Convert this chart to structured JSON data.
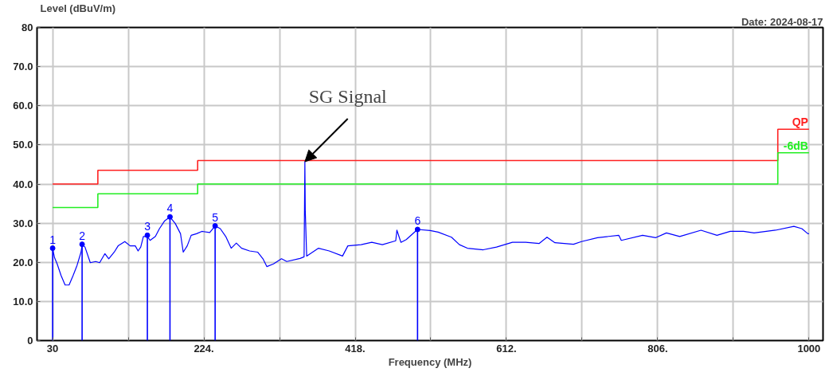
{
  "chart_data": {
    "type": "line",
    "xlabel": "Frequency (MHz)",
    "ylabel": "Level (dBuV/m)",
    "xlim": [
      10,
      1018
    ],
    "ylim": [
      0,
      80
    ],
    "xticks": [
      30,
      {
        "value": 127,
        "label": null
      },
      {
        "value": 224,
        "label": "224."
      },
      {
        "value": 321,
        "label": null
      },
      {
        "value": 418,
        "label": "418."
      },
      {
        "value": 515,
        "label": null
      },
      {
        "value": 612,
        "label": "612."
      },
      {
        "value": 709,
        "label": null
      },
      {
        "value": 806,
        "label": "806."
      },
      {
        "value": 903,
        "label": null
      },
      1000
    ],
    "yticks": [
      0,
      {
        "value": 10,
        "label": "10.0"
      },
      {
        "value": 20,
        "label": "20.0"
      },
      {
        "value": 30,
        "label": "30.0"
      },
      {
        "value": 40,
        "label": "40.0"
      },
      {
        "value": 50,
        "label": "50.0"
      },
      {
        "value": 60,
        "label": "60.0"
      },
      {
        "value": 70,
        "label": "70.0"
      },
      80
    ],
    "grid": true,
    "marker": "none",
    "line_style": "solid",
    "annotations": [
      "Date: 2024-08-17",
      {
        "text": "SG Signal",
        "x": 353.5,
        "y": 45.7
      },
      {
        "text": "1",
        "x": 30,
        "y": 23.6
      },
      {
        "text": "2",
        "x": 67.8,
        "y": 24.6
      },
      {
        "text": "3",
        "x": 151.5,
        "y": 26.9
      },
      {
        "text": "4",
        "x": 180.5,
        "y": 31.6
      },
      {
        "text": "5",
        "x": 238.4,
        "y": 29.3
      },
      {
        "text": "6",
        "x": 498,
        "y": 28.4
      }
    ],
    "series": [
      {
        "type": "step",
        "name": "QP",
        "color": "#ff2020",
        "x": [
          30,
          88,
          216,
          960,
          1000
        ],
        "values": [
          40,
          43.5,
          46,
          54,
          54
        ]
      },
      {
        "type": "step",
        "name": "-6dB",
        "color": "#22ee22",
        "x": [
          30,
          88,
          216,
          960,
          1000
        ],
        "values": [
          34,
          37.5,
          40,
          48,
          48
        ]
      },
      {
        "color": "#0000ff",
        "x": [
          30,
          32.4,
          35.8,
          40.9,
          46,
          51.1,
          56.2,
          61.3,
          66.4,
          68,
          71.5,
          78.3,
          85.2,
          90.3,
          97,
          102,
          109,
          114,
          122.6,
          129.4,
          136,
          139.6,
          143,
          146.4,
          151.5,
          155,
          161.8,
          167,
          173.7,
          180.5,
          187.3,
          194,
          197.5,
          202.6,
          207.7,
          214.5,
          221.4,
          231.5,
          238.4,
          245,
          252,
          259,
          265.6,
          272.4,
          282.6,
          292.9,
          299.7,
          304.8,
          313.3,
          323.5,
          330.3,
          347.4,
          352.5,
          353,
          353.5,
          354,
          355.8,
          371,
          384.7,
          401.8,
          408.6,
          425.6,
          439.3,
          452.9,
          470,
          471.5,
          476.7,
          483.5,
          498,
          514.2,
          524.4,
          541.5,
          551.7,
          561.9,
          582.3,
          599.3,
          619.7,
          636.7,
          653.8,
          664,
          674.2,
          698,
          708.2,
          728.7,
          756,
          759.3,
          786.6,
          803.6,
          817.2,
          834.2,
          861.5,
          882,
          899,
          916,
          929.6,
          957,
          980.6,
          990.8,
          998.6,
          1000
        ],
        "values": [
          23.6,
          21.2,
          19.6,
          16.6,
          14.2,
          14.2,
          16.6,
          19.2,
          22.6,
          24.6,
          23.9,
          19.9,
          20.2,
          19.9,
          22.2,
          20.9,
          22.6,
          24.2,
          25.3,
          24.2,
          24.2,
          22.9,
          23.9,
          26.6,
          26.6,
          25.6,
          26.6,
          28.6,
          30.6,
          31.6,
          29.9,
          27.3,
          22.6,
          24.2,
          26.9,
          27.3,
          27.9,
          27.6,
          29.3,
          28.6,
          26.6,
          23.6,
          24.9,
          23.6,
          22.9,
          22.6,
          20.9,
          18.9,
          19.6,
          20.9,
          20.2,
          21.0,
          21.4,
          33.3,
          45.7,
          33.3,
          21.6,
          23.6,
          22.9,
          21.6,
          24.2,
          24.5,
          25.1,
          24.5,
          25.5,
          28.2,
          25.1,
          25.8,
          28.4,
          28.1,
          27.7,
          26.4,
          24.5,
          23.6,
          23.2,
          23.9,
          25.1,
          25.1,
          24.8,
          26.4,
          25.0,
          24.6,
          25.3,
          26.3,
          26.9,
          25.6,
          26.9,
          26.3,
          27.5,
          26.6,
          28.2,
          26.9,
          27.9,
          27.9,
          27.5,
          28.2,
          29.2,
          28.6,
          27.3,
          27.3
        ]
      },
      {
        "type": "lollipop",
        "color": "#0000ff",
        "x": [
          30,
          67.8,
          151.5,
          180.5,
          238.4,
          498
        ],
        "values": [
          23.6,
          24.6,
          26.9,
          31.6,
          29.3,
          28.4
        ]
      }
    ]
  }
}
